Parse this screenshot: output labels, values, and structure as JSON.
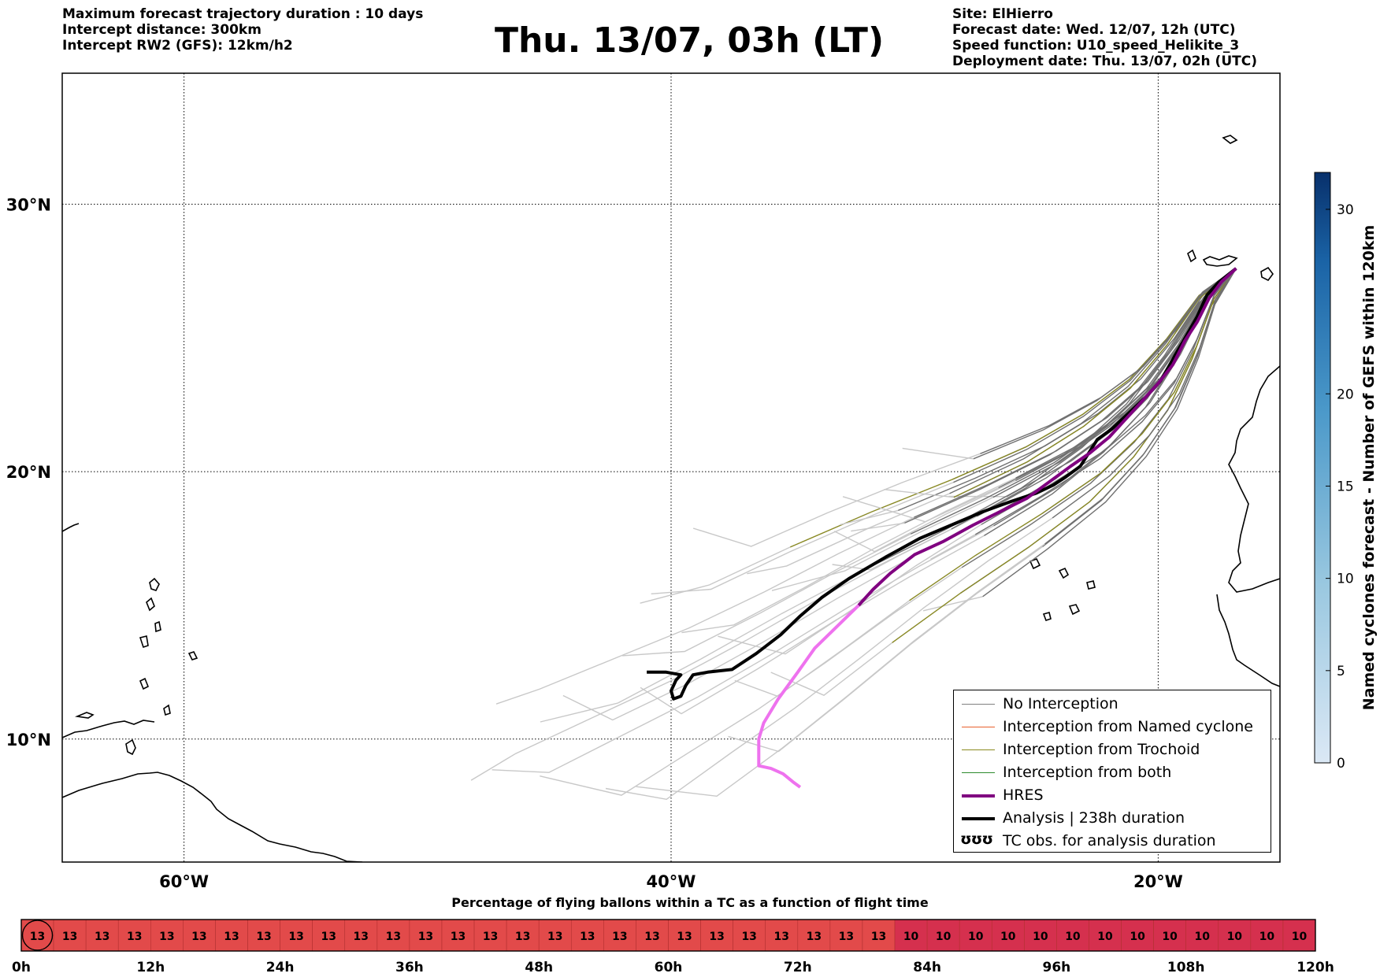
{
  "header": {
    "left": [
      "Maximum forecast trajectory duration : 10 days",
      "Intercept distance: 300km",
      "Intercept RW2 (GFS):  12km/h2"
    ],
    "title": "Thu. 13/07, 03h (LT)",
    "right": [
      "Site: ElHierro",
      "Forecast date: Wed. 12/07, 12h (UTC)",
      "Speed function: U10_speed_Helikite_3",
      "Deployment date: Thu. 13/07, 02h (UTC)"
    ]
  },
  "chart_data": [
    {
      "type": "map",
      "lon_range": [
        -65,
        -15
      ],
      "lat_range": [
        5.4,
        34.9
      ],
      "gridlines": true,
      "lon_ticks": [
        {
          "value": -60,
          "label": "60°W"
        },
        {
          "value": -40,
          "label": "40°W"
        },
        {
          "value": -20,
          "label": "20°W"
        }
      ],
      "lat_ticks": [
        {
          "value": 30,
          "label": "30°N"
        },
        {
          "value": 20,
          "label": "20°N"
        },
        {
          "value": 10,
          "label": "10°N"
        }
      ],
      "legend_position": "bottom-right",
      "legend": [
        {
          "label": "No Interception",
          "color": "#808080",
          "style": "thin"
        },
        {
          "label": "Interception from Named cyclone",
          "color": "#e8602c",
          "style": "thin"
        },
        {
          "label": "Interception from Trochoid",
          "color": "#8a8a20",
          "style": "thin"
        },
        {
          "label": "Interception from both",
          "color": "#2e8b2e",
          "style": "thin"
        },
        {
          "label": "HRES",
          "color": "#800080",
          "style": "thick"
        },
        {
          "label": "Analysis | 238h duration",
          "color": "#000000",
          "style": "thick"
        },
        {
          "label": "TC obs. for analysis duration",
          "color": "#000000",
          "style": "glyph",
          "glyph": "ʊʊʊ"
        }
      ],
      "series": [
        {
          "id": "analysis",
          "color": "#000000",
          "points": [
            [
              -16.8,
              27.6
            ],
            [
              -17.5,
              27.1
            ],
            [
              -18.0,
              26.6
            ],
            [
              -18.4,
              25.8
            ],
            [
              -18.9,
              25.0
            ],
            [
              -19.4,
              24.2
            ],
            [
              -19.9,
              23.4
            ],
            [
              -20.5,
              22.8
            ],
            [
              -21.2,
              22.2
            ],
            [
              -21.9,
              21.6
            ],
            [
              -22.5,
              21.2
            ],
            [
              -23.2,
              20.2
            ],
            [
              -23.8,
              19.8
            ],
            [
              -24.3,
              19.5
            ],
            [
              -25.0,
              19.2
            ],
            [
              -26.0,
              18.9
            ],
            [
              -27.2,
              18.5
            ],
            [
              -28.5,
              18.0
            ],
            [
              -29.8,
              17.5
            ],
            [
              -31.2,
              16.8
            ],
            [
              -32.7,
              16.0
            ],
            [
              -33.8,
              15.3
            ],
            [
              -34.7,
              14.6
            ],
            [
              -35.5,
              13.9
            ],
            [
              -36.5,
              13.2
            ],
            [
              -37.5,
              12.6
            ],
            [
              -38.5,
              12.5
            ],
            [
              -39.1,
              12.4
            ],
            [
              -39.4,
              12.0
            ],
            [
              -39.6,
              11.6
            ],
            [
              -39.9,
              11.5
            ],
            [
              -40.0,
              11.8
            ],
            [
              -39.8,
              12.2
            ],
            [
              -39.6,
              12.4
            ],
            [
              -40.2,
              12.5
            ],
            [
              -41.0,
              12.5
            ]
          ]
        },
        {
          "id": "hres",
          "color": "#800080",
          "points": [
            [
              -16.8,
              27.6
            ],
            [
              -17.4,
              27.1
            ],
            [
              -17.9,
              26.5
            ],
            [
              -18.4,
              25.6
            ],
            [
              -18.9,
              24.9
            ],
            [
              -19.4,
              24.0
            ],
            [
              -20.0,
              23.3
            ],
            [
              -20.7,
              22.6
            ],
            [
              -21.3,
              22.0
            ],
            [
              -22.0,
              21.3
            ],
            [
              -22.8,
              20.7
            ],
            [
              -23.6,
              20.2
            ],
            [
              -24.5,
              19.6
            ],
            [
              -25.4,
              19.0
            ],
            [
              -26.5,
              18.5
            ],
            [
              -27.6,
              18.0
            ],
            [
              -28.8,
              17.4
            ],
            [
              -30.0,
              16.9
            ],
            [
              -31.0,
              16.2
            ],
            [
              -31.7,
              15.6
            ],
            [
              -32.3,
              15.0
            ]
          ]
        },
        {
          "id": "hres-late",
          "color": "#ee72ee",
          "points": [
            [
              -32.3,
              15.0
            ],
            [
              -33.2,
              14.2
            ],
            [
              -34.1,
              13.4
            ],
            [
              -34.8,
              12.5
            ],
            [
              -35.6,
              11.5
            ],
            [
              -36.2,
              10.6
            ],
            [
              -36.4,
              10.0
            ],
            [
              -36.4,
              9.0
            ],
            [
              -35.9,
              8.9
            ],
            [
              -35.4,
              8.7
            ],
            [
              -35.0,
              8.4
            ],
            [
              -34.7,
              8.2
            ]
          ]
        }
      ]
    },
    {
      "type": "colorbar",
      "ylabel": "Named cyclones forecast - Number of GEFS within 120km",
      "range": [
        0,
        32
      ],
      "ticks": [
        0,
        5,
        10,
        15,
        20,
        30
      ],
      "color_from": "#dbe8f5",
      "color_to": "#08306b"
    },
    {
      "type": "heatmap",
      "title": "Percentage of flying ballons within a TC as a function of flight time",
      "cells": [
        13,
        13,
        13,
        13,
        13,
        13,
        13,
        13,
        13,
        13,
        13,
        13,
        13,
        13,
        13,
        13,
        13,
        13,
        13,
        13,
        13,
        13,
        13,
        13,
        13,
        13,
        13,
        10,
        10,
        10,
        10,
        10,
        10,
        10,
        10,
        10,
        10,
        10,
        10,
        10
      ],
      "colors": {
        "13": "#e24a4a",
        "10": "#d5304e"
      },
      "x_ticks": [
        "0h",
        "12h",
        "24h",
        "36h",
        "48h",
        "60h",
        "72h",
        "84h",
        "96h",
        "108h",
        "120h"
      ]
    }
  ]
}
